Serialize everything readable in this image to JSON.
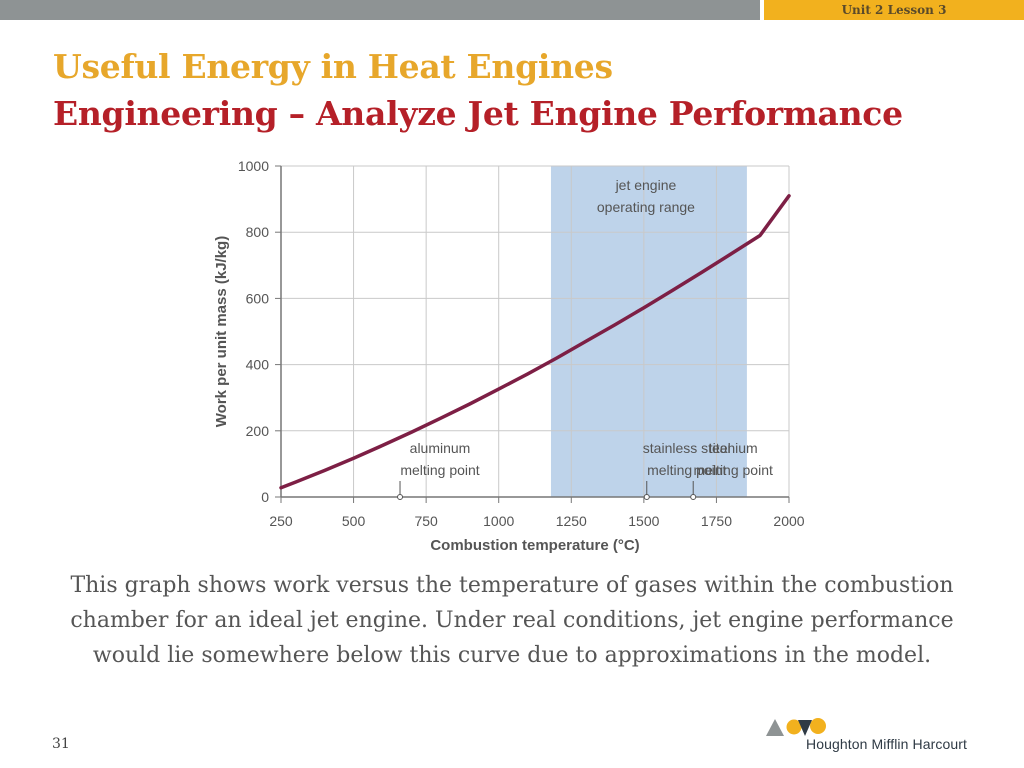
{
  "header": {
    "lesson_tab": "Unit 2 Lesson 3"
  },
  "title": "Useful Energy in Heat Engines",
  "subtitle": "Engineering – Analyze Jet Engine Performance",
  "caption": "This graph shows work versus the temperature of gases within the combustion chamber for an ideal jet engine. Under real conditions, jet engine performance would lie somewhere below this curve due to approximations in the model.",
  "page_number": "31",
  "brand": "Houghton Mifflin Harcourt",
  "colors": {
    "top_bar": "#8e9394",
    "lesson_tab": "#f2b11e",
    "title": "#e7a72b",
    "subtitle": "#b52028",
    "curve": "#7d1f45",
    "range_band": "#bed3ea"
  },
  "chart_data": {
    "type": "line",
    "xlabel": "Combustion temperature (°C)",
    "ylabel": "Work per unit mass (kJ/kg)",
    "xlim": [
      250,
      2000
    ],
    "ylim": [
      0,
      1000
    ],
    "xticks": [
      250,
      500,
      750,
      1000,
      1250,
      1500,
      1750,
      2000
    ],
    "yticks": [
      0,
      200,
      400,
      600,
      800,
      1000
    ],
    "grid": true,
    "series": [
      {
        "x": [
          250,
          300,
          400,
          500,
          600,
          700,
          800,
          900,
          1000,
          1100,
          1200,
          1300,
          1400,
          1500,
          1600,
          1700,
          1800,
          1900,
          2000
        ],
        "y": [
          28,
          45,
          80,
          117,
          156,
          196,
          238,
          281,
          326,
          372,
          420,
          470,
          520,
          572,
          625,
          679,
          734,
          790,
          910
        ]
      }
    ],
    "shaded_region": {
      "x": [
        1180,
        1855
      ],
      "label_lines": [
        "jet engine",
        "operating range"
      ]
    },
    "markers": [
      {
        "x": 660,
        "label_lines": [
          "aluminum",
          "melting point"
        ]
      },
      {
        "x": 1510,
        "label_lines": [
          "stainless steel",
          "melting point"
        ]
      },
      {
        "x": 1670,
        "label_lines": [
          "titanium",
          "melting point"
        ]
      }
    ]
  }
}
